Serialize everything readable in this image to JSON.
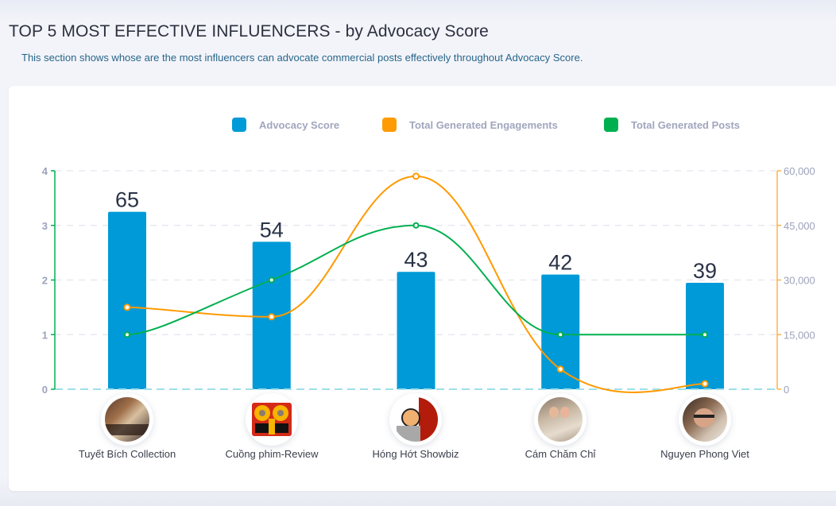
{
  "header": {
    "title": "TOP 5 MOST EFFECTIVE INFLUENCERS - by Advocacy Score",
    "description": "This section shows whose are the most influencers can advocate commercial posts effectively throughout Advocacy Score."
  },
  "colors": {
    "advocacy": "#009ad8",
    "engagements": "#ff9a00",
    "posts": "#00b050",
    "grid": "#e3e5ef",
    "tick_text": "#9ca2bb",
    "baseline": "#9edfe9"
  },
  "chart_data": {
    "type": "bar",
    "title": "TOP 5 MOST EFFECTIVE INFLUENCERS - by Advocacy Score",
    "categories": [
      "Tuyết Bích Collection",
      "Cuồng phim-Review",
      "Hóng Hớt Showbiz",
      "Cám Chăm Chỉ",
      "Nguyen Phong Viet"
    ],
    "legend": [
      "Advocacy Score",
      "Total Generated Engagements",
      "Total Generated Posts"
    ],
    "legend_position": "top",
    "grid": true,
    "series": [
      {
        "name": "Advocacy Score",
        "type": "bar",
        "axis": "hidden",
        "values": [
          65,
          54,
          43,
          42,
          39
        ],
        "labels": [
          "65",
          "54",
          "43",
          "42",
          "39"
        ]
      },
      {
        "name": "Total Generated Engagements",
        "type": "line",
        "axis": "right",
        "values": [
          22500,
          19900,
          58500,
          5500,
          1500
        ]
      },
      {
        "name": "Total Generated Posts",
        "type": "line",
        "axis": "left",
        "values": [
          1,
          2,
          3,
          1,
          1
        ]
      }
    ],
    "y_left": {
      "range": [
        0,
        4
      ],
      "ticks": [
        "0",
        "1",
        "2",
        "3",
        "4"
      ]
    },
    "y_right": {
      "range": [
        0,
        60000
      ],
      "ticks": [
        "0",
        "15,000",
        "30,000",
        "45,000",
        "60,000"
      ]
    },
    "y_bar_range": [
      0,
      80
    ],
    "influencers": [
      {
        "name": "Tuyết Bích Collection",
        "avatar": "avatar-tuyet-bich"
      },
      {
        "name": "Cuồng phim-Review",
        "avatar": "avatar-cuong-phim"
      },
      {
        "name": "Hóng Hớt Showbiz",
        "avatar": "avatar-hong-hot"
      },
      {
        "name": "Cám Chăm Chỉ",
        "avatar": "avatar-cam-cham-chi"
      },
      {
        "name": "Nguyen Phong Viet",
        "avatar": "avatar-nguyen-phong-viet"
      }
    ]
  }
}
